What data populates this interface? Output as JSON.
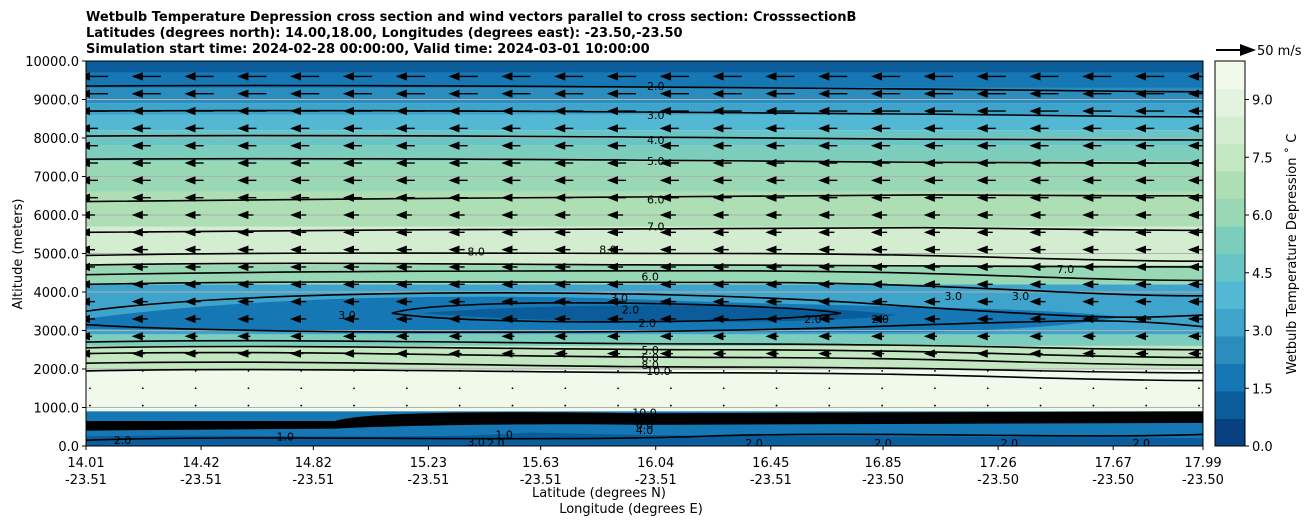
{
  "chart_data": {
    "type": "contour",
    "title_lines": [
      "Wetbulb Temperature Depression cross section and wind vectors parallel to cross section: CrosssectionB",
      "Latitudes (degrees north): 14.00,18.00, Longitudes (degrees east): -23.50,-23.50",
      "Simulation start time: 2024-02-28 00:00:00, Valid time: 2024-03-01 10:00:00"
    ],
    "ylabel": "Altitude (meters)",
    "xlabel_lat": "Latitude (degrees N)",
    "xlabel_lon": "Longitude (degrees E)",
    "ylim": [
      0,
      10000
    ],
    "y_ticks": [
      "0.0",
      "1000.0",
      "2000.0",
      "3000.0",
      "4000.0",
      "5000.0",
      "6000.0",
      "7000.0",
      "8000.0",
      "9000.0",
      "10000.0"
    ],
    "x_ticks_lat": [
      "14.01",
      "14.42",
      "14.82",
      "15.23",
      "15.63",
      "16.04",
      "16.45",
      "16.85",
      "17.26",
      "17.67",
      "17.99"
    ],
    "x_ticks_lon": [
      "-23.51",
      "-23.51",
      "-23.51",
      "-23.51",
      "-23.51",
      "-23.51",
      "-23.51",
      "-23.50",
      "-23.50",
      "-23.50",
      "-23.50"
    ],
    "grid": "horizontal",
    "colorbar": {
      "label": "Wetbulb Temperature Depression ˚ C",
      "ticks": [
        "0.0",
        "1.5",
        "3.0",
        "4.5",
        "6.0",
        "7.5",
        "9.0"
      ],
      "range": [
        0,
        10
      ],
      "colors": [
        "#084081",
        "#0a5c9a",
        "#1577b4",
        "#2b8cbe",
        "#3fa4cb",
        "#52b8d4",
        "#68c5c6",
        "#7ccdbb",
        "#99d8b5",
        "#aedeb3",
        "#c3e7c1",
        "#d4edd0",
        "#e3f3df",
        "#f0f9ea"
      ]
    },
    "wind_legend_label": "50 m/s",
    "contour_levels": [
      "2.0",
      "3.0",
      "4.0",
      "5.0",
      "6.0",
      "7.0",
      "8.0",
      "10.0"
    ],
    "contour_labels": [
      {
        "text": "2.0",
        "lat": 16.04,
        "alt": 9350
      },
      {
        "text": "3.0",
        "lat": 16.04,
        "alt": 8600
      },
      {
        "text": "4.0",
        "lat": 16.04,
        "alt": 7950
      },
      {
        "text": "5.0",
        "lat": 16.04,
        "alt": 7400
      },
      {
        "text": "6.0",
        "lat": 16.04,
        "alt": 6400
      },
      {
        "text": "7.0",
        "lat": 16.04,
        "alt": 5700
      },
      {
        "text": "8.0",
        "lat": 15.4,
        "alt": 5050
      },
      {
        "text": "8.0",
        "lat": 15.87,
        "alt": 5100
      },
      {
        "text": "7.0",
        "lat": 17.5,
        "alt": 4600
      },
      {
        "text": "6.0",
        "lat": 16.02,
        "alt": 4400
      },
      {
        "text": "3.0",
        "lat": 15.91,
        "alt": 3850
      },
      {
        "text": "2.0",
        "lat": 15.95,
        "alt": 3550
      },
      {
        "text": "2.0",
        "lat": 16.01,
        "alt": 3200
      },
      {
        "text": "2.0",
        "lat": 16.6,
        "alt": 3300
      },
      {
        "text": "2.0",
        "lat": 16.84,
        "alt": 3300
      },
      {
        "text": "3.0",
        "lat": 17.1,
        "alt": 3900
      },
      {
        "text": "3.0",
        "lat": 17.34,
        "alt": 3900
      },
      {
        "text": "3.0",
        "lat": 14.94,
        "alt": 3400
      },
      {
        "text": "5.0",
        "lat": 16.02,
        "alt": 2500
      },
      {
        "text": "6.0",
        "lat": 16.02,
        "alt": 2300
      },
      {
        "text": "8.0",
        "lat": 16.02,
        "alt": 2100
      },
      {
        "text": "10.0",
        "lat": 16.05,
        "alt": 1950
      },
      {
        "text": "10.0",
        "lat": 16.0,
        "alt": 870
      },
      {
        "text": "8.0",
        "lat": 16.0,
        "alt": 680
      },
      {
        "text": "6.0",
        "lat": 16.0,
        "alt": 550
      },
      {
        "text": "4.0",
        "lat": 16.0,
        "alt": 420
      },
      {
        "text": "2.0",
        "lat": 16.39,
        "alt": 80
      },
      {
        "text": "2.0",
        "lat": 16.85,
        "alt": 80
      },
      {
        "text": "2.0",
        "lat": 17.3,
        "alt": 80
      },
      {
        "text": "2.0",
        "lat": 17.77,
        "alt": 80
      },
      {
        "text": "2.0",
        "lat": 14.14,
        "alt": 160
      },
      {
        "text": "1.0",
        "lat": 14.72,
        "alt": 250
      },
      {
        "text": "3.0",
        "lat": 15.4,
        "alt": 100
      },
      {
        "text": "1.0",
        "lat": 15.5,
        "alt": 300
      },
      {
        "text": "2.0",
        "lat": 15.47,
        "alt": 80
      }
    ]
  }
}
